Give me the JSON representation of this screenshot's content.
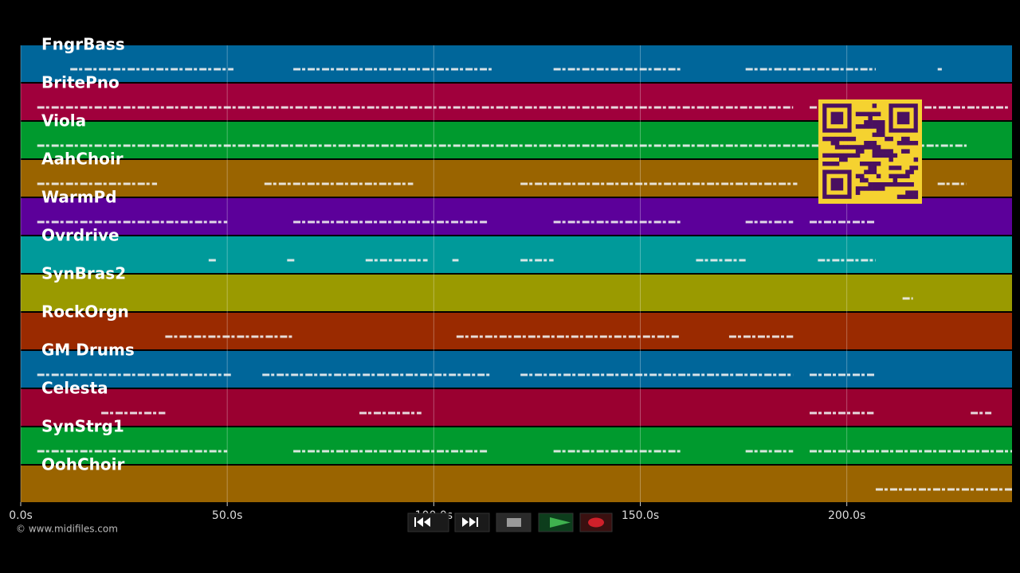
{
  "chart_data": {
    "type": "timeline",
    "xlim": [
      0,
      240
    ],
    "xticks": [
      {
        "value": 0,
        "label": "0.0s"
      },
      {
        "value": 50,
        "label": "50.0s"
      },
      {
        "value": 100,
        "label": "100.0s"
      },
      {
        "value": 150,
        "label": "150.0s"
      },
      {
        "value": 200,
        "label": "200.0s"
      }
    ],
    "grid": true,
    "tracks": [
      {
        "name": "FngrBass",
        "color": "#00669a",
        "segments": [
          [
            12,
            51.5
          ],
          [
            66,
            114
          ],
          [
            129,
            160
          ],
          [
            175.5,
            207
          ],
          [
            222,
            223
          ]
        ]
      },
      {
        "name": "BritePno",
        "color": "#a0003c",
        "segments": [
          [
            4,
            187
          ],
          [
            191,
            239
          ]
        ]
      },
      {
        "name": "Viola",
        "color": "#009a2e",
        "segments": [
          [
            4,
            229
          ]
        ]
      },
      {
        "name": "AahChoir",
        "color": "#9a6400",
        "segments": [
          [
            4,
            33
          ],
          [
            59,
            95
          ],
          [
            121,
            188
          ],
          [
            222,
            229
          ]
        ]
      },
      {
        "name": "WarmPd",
        "color": "#5c009a",
        "segments": [
          [
            4,
            50
          ],
          [
            66,
            113
          ],
          [
            129,
            160
          ],
          [
            175.5,
            187
          ],
          [
            191,
            207
          ]
        ]
      },
      {
        "name": "Ovrdrive",
        "color": "#009a9a",
        "segments": [
          [
            45.5,
            47.5
          ],
          [
            64.5,
            66.5
          ],
          [
            83.5,
            98.5
          ],
          [
            104.5,
            106
          ],
          [
            121,
            129
          ],
          [
            163.5,
            175.5
          ],
          [
            193,
            207
          ]
        ]
      },
      {
        "name": "SynBras2",
        "color": "#9a9a00",
        "segments": [
          [
            213.5,
            216
          ]
        ]
      },
      {
        "name": "RockOrgn",
        "color": "#9a2a00",
        "segments": [
          [
            35,
            66
          ],
          [
            105.5,
            159.5
          ],
          [
            171.5,
            187
          ]
        ]
      },
      {
        "name": "GM Drums",
        "color": "#00669a",
        "segments": [
          [
            4,
            51
          ],
          [
            58.5,
            113.5
          ],
          [
            121,
            187
          ],
          [
            191,
            207
          ]
        ]
      },
      {
        "name": "Celesta",
        "color": "#9a0030",
        "segments": [
          [
            19.5,
            35
          ],
          [
            82,
            97
          ],
          [
            191,
            206.5
          ],
          [
            230,
            235
          ]
        ]
      },
      {
        "name": "SynStrg1",
        "color": "#009a2e",
        "segments": [
          [
            4,
            50
          ],
          [
            66,
            113
          ],
          [
            129,
            160
          ],
          [
            175.5,
            187
          ],
          [
            191,
            240
          ]
        ]
      },
      {
        "name": "OohChoir",
        "color": "#9a6400",
        "segments": [
          [
            207,
            240
          ]
        ]
      }
    ]
  },
  "footer": {
    "copyright": "© www.midifiles.com"
  }
}
